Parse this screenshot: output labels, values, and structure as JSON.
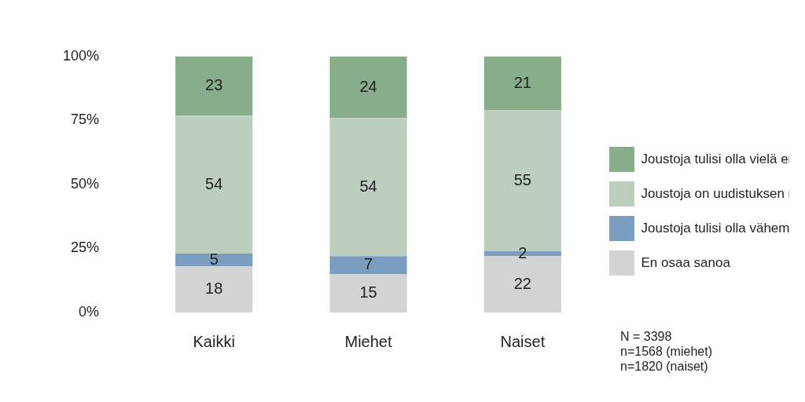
{
  "chart_data": {
    "type": "bar",
    "stacked": true,
    "categories": [
      "Kaikki",
      "Miehet",
      "Naiset"
    ],
    "series": [
      {
        "name": "Joustoja tulisi olla vielä enemmän",
        "color": "#87ad8a",
        "values": [
          23,
          24,
          21
        ]
      },
      {
        "name": "Joustoja on uudistuksen myötä riittävästi",
        "color": "#bccfbe",
        "values": [
          54,
          54,
          55
        ]
      },
      {
        "name": "Joustoja tulisi olla vähemmän",
        "color": "#7b9dc0",
        "values": [
          5,
          7,
          2
        ]
      },
      {
        "name": "En osaa sanoa",
        "color": "#d3d3d3",
        "values": [
          18,
          15,
          22
        ]
      }
    ],
    "ylim": [
      0,
      100
    ],
    "yticks": [
      {
        "value": 0,
        "label": "0%"
      },
      {
        "value": 25,
        "label": "25%"
      },
      {
        "value": 50,
        "label": "50%"
      },
      {
        "value": 75,
        "label": "75%"
      },
      {
        "value": 100,
        "label": "100%"
      }
    ],
    "grid": false,
    "legend": "right",
    "data_labels": true,
    "annotations": [
      "N = 3398",
      "n=1568 (miehet)",
      "n=1820 (naiset)"
    ]
  }
}
